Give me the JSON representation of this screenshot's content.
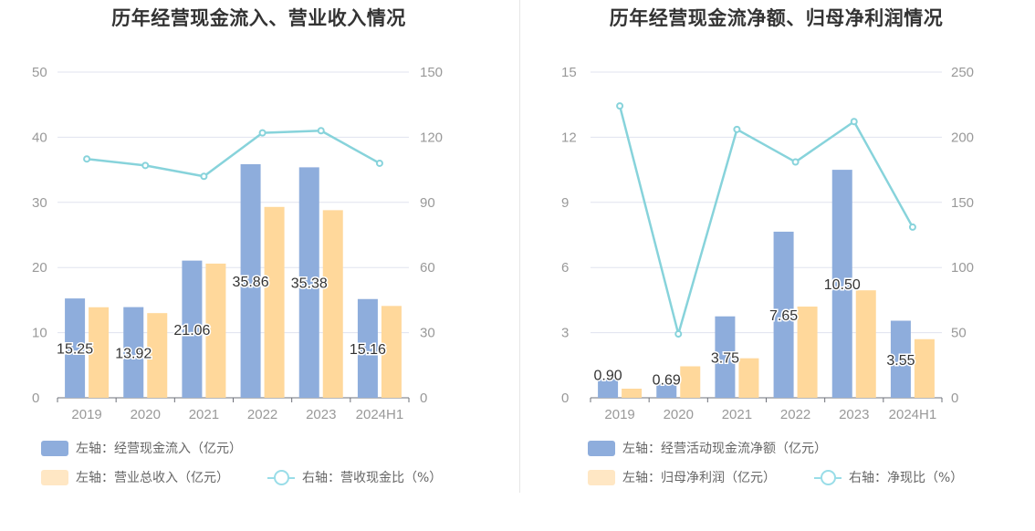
{
  "colors": {
    "bar_primary": "#8eaddc",
    "bar_secondary": "#ffd89b",
    "line": "#87d3db",
    "axis_text": "#999999",
    "grid": "#e0e3ef"
  },
  "left": {
    "title": "历年经营现金流入、营业收入情况",
    "legend": {
      "bar1": "左轴：经营现金流入（亿元）",
      "bar2": "左轴：营业总收入（亿元）",
      "line": "右轴：营收现金比（%）"
    }
  },
  "right": {
    "title": "历年经营现金流净额、归母净利润情况",
    "legend": {
      "bar1": "左轴：经营活动现金流净额（亿元）",
      "bar2": "左轴：归母净利润（亿元）",
      "line": "右轴：净现比（%）"
    }
  },
  "chart_data": [
    {
      "type": "bar",
      "title": "历年经营现金流入、营业收入情况",
      "categories": [
        "2019",
        "2020",
        "2021",
        "2022",
        "2023",
        "2024H1"
      ],
      "ylim_left": [
        0,
        50
      ],
      "yticks_left": [
        "0",
        "10",
        "20",
        "30",
        "40",
        "50"
      ],
      "ylim_right": [
        0,
        150
      ],
      "yticks_right": [
        "0",
        "30",
        "60",
        "90",
        "120",
        "150"
      ],
      "series": [
        {
          "name": "左轴：经营现金流入（亿元）",
          "axis": "left",
          "kind": "bar",
          "values": [
            15.25,
            13.92,
            21.06,
            35.86,
            35.38,
            15.16
          ],
          "labels": [
            "15.25",
            "13.92",
            "21.06",
            "35.86",
            "35.38",
            "15.16"
          ]
        },
        {
          "name": "左轴：营业总收入（亿元）",
          "axis": "left",
          "kind": "bar",
          "values": [
            13.9,
            13.0,
            20.6,
            29.3,
            28.8,
            14.1
          ]
        },
        {
          "name": "右轴：营收现金比（%）",
          "axis": "right",
          "kind": "line",
          "values": [
            110,
            107,
            102,
            122,
            123,
            108
          ]
        }
      ]
    },
    {
      "type": "bar",
      "title": "历年经营现金流净额、归母净利润情况",
      "categories": [
        "2019",
        "2020",
        "2021",
        "2022",
        "2023",
        "2024H1"
      ],
      "ylim_left": [
        0,
        15
      ],
      "yticks_left": [
        "0",
        "3",
        "6",
        "9",
        "12",
        "15"
      ],
      "ylim_right": [
        0,
        250
      ],
      "yticks_right": [
        "0",
        "50",
        "100",
        "150",
        "200",
        "250"
      ],
      "series": [
        {
          "name": "左轴：经营活动现金流净额（亿元）",
          "axis": "left",
          "kind": "bar",
          "values": [
            0.9,
            0.69,
            3.75,
            7.65,
            10.5,
            3.55
          ],
          "labels": [
            "0.90",
            "0.69",
            "3.75",
            "7.65",
            "10.50",
            "3.55"
          ]
        },
        {
          "name": "左轴：归母净利润（亿元）",
          "axis": "left",
          "kind": "bar",
          "values": [
            0.42,
            1.45,
            1.82,
            4.2,
            4.95,
            2.7
          ]
        },
        {
          "name": "右轴：净现比（%）",
          "axis": "right",
          "kind": "line",
          "values": [
            224,
            49,
            206,
            181,
            212,
            131
          ]
        }
      ]
    }
  ]
}
